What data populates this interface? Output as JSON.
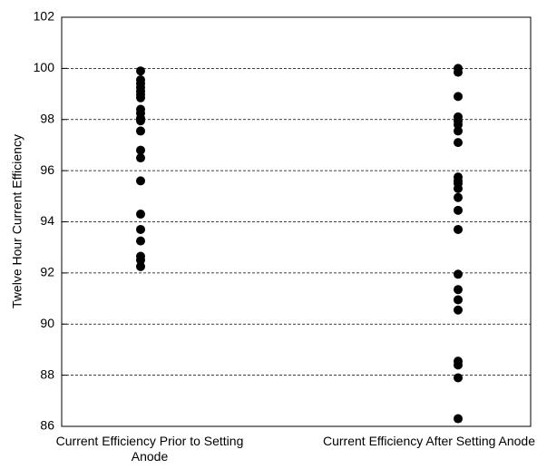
{
  "chart_data": {
    "type": "strip",
    "y_label": "Twelve Hour Current Efficiency",
    "categories": [
      "Current Efficiency Prior to Setting Anode",
      "Current Efficiency After Setting Anode"
    ],
    "values": [
      [
        99.9,
        99.55,
        99.4,
        99.25,
        99.1,
        98.98,
        98.85,
        98.4,
        98.25,
        98.05,
        97.95,
        97.55,
        96.8,
        96.5,
        95.6,
        94.3,
        93.7,
        93.25,
        92.65,
        92.5,
        92.25
      ],
      [
        100,
        99.85,
        98.9,
        98.1,
        97.95,
        97.8,
        97.55,
        97.1,
        95.75,
        95.6,
        95.5,
        95.3,
        94.95,
        94.45,
        93.7,
        91.95,
        91.35,
        90.95,
        90.55,
        88.55,
        88.4,
        87.9,
        86.3
      ]
    ],
    "color": "#000000",
    "ylim": [
      86,
      102
    ],
    "yticks": [
      86,
      88,
      90,
      92,
      94,
      96,
      98,
      100,
      102
    ],
    "grid": true
  }
}
